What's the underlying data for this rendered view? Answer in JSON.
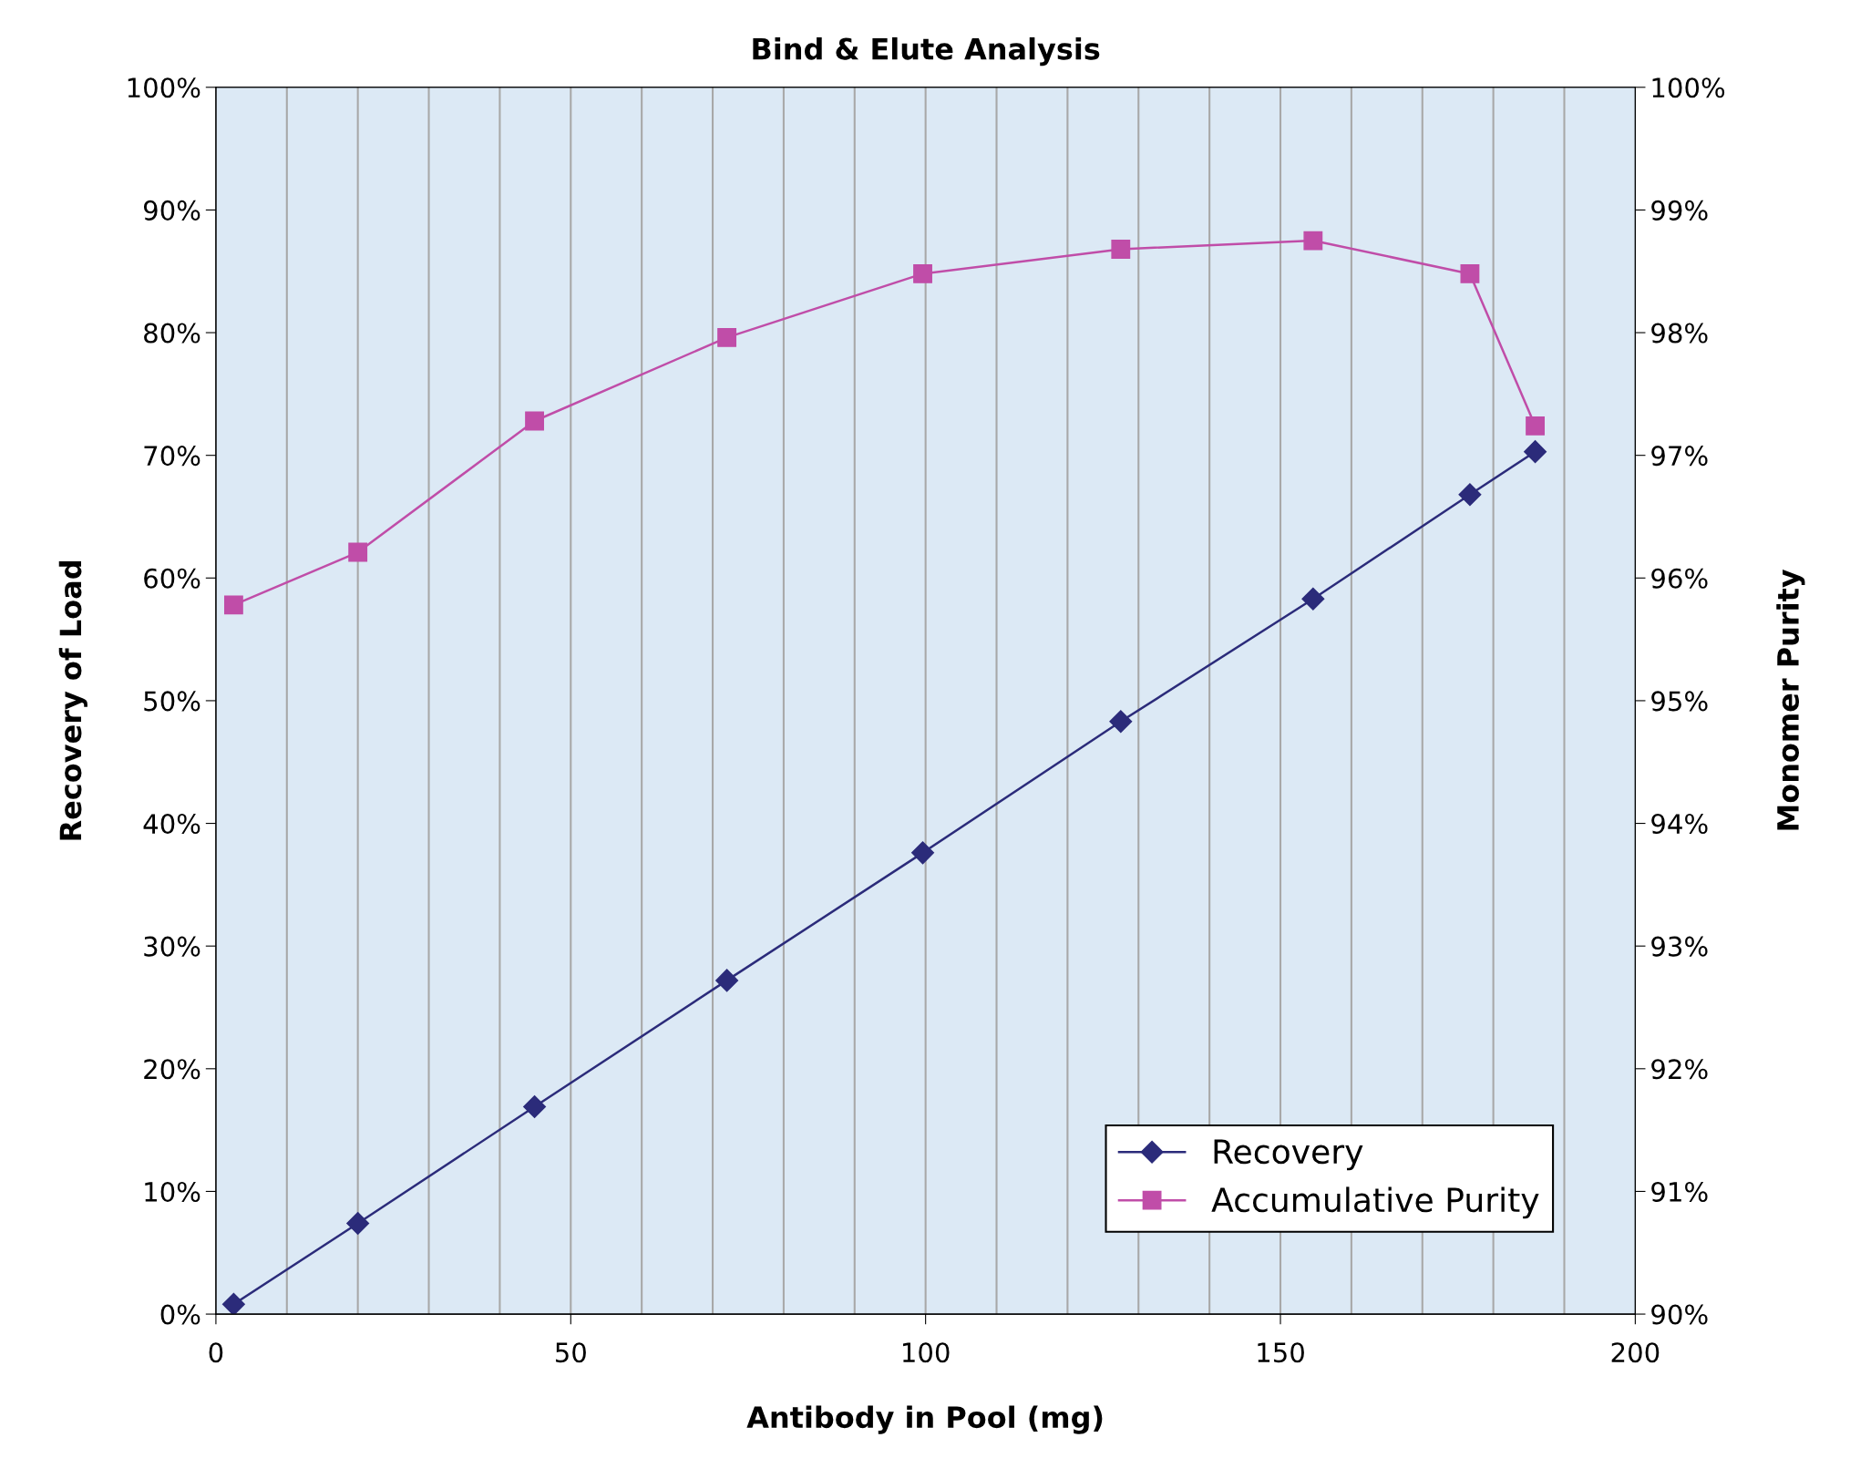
{
  "chart_data": {
    "type": "line",
    "title": "Bind & Elute Analysis",
    "xlabel": "Antibody in Pool (mg)",
    "ylabel": "Recovery of Load",
    "y2label": "Monomer Purity",
    "xlim": [
      0,
      200
    ],
    "xticks": [
      0,
      50,
      100,
      150,
      200
    ],
    "ylim": [
      0,
      100
    ],
    "yticks": [
      {
        "value": 0,
        "label": "0%"
      },
      {
        "value": 10,
        "label": "10%"
      },
      {
        "value": 20,
        "label": "20%"
      },
      {
        "value": 30,
        "label": "30%"
      },
      {
        "value": 40,
        "label": "40%"
      },
      {
        "value": 50,
        "label": "50%"
      },
      {
        "value": 60,
        "label": "60%"
      },
      {
        "value": 70,
        "label": "70%"
      },
      {
        "value": 80,
        "label": "80%"
      },
      {
        "value": 90,
        "label": "90%"
      },
      {
        "value": 100,
        "label": "100%"
      }
    ],
    "y2lim": [
      90,
      100
    ],
    "y2ticks": [
      {
        "value": 90,
        "label": "90%"
      },
      {
        "value": 91,
        "label": "91%"
      },
      {
        "value": 92,
        "label": "92%"
      },
      {
        "value": 93,
        "label": "93%"
      },
      {
        "value": 94,
        "label": "94%"
      },
      {
        "value": 95,
        "label": "95%"
      },
      {
        "value": 96,
        "label": "96%"
      },
      {
        "value": 97,
        "label": "97%"
      },
      {
        "value": 98,
        "label": "98%"
      },
      {
        "value": 99,
        "label": "99%"
      },
      {
        "value": 100,
        "label": "100%"
      }
    ],
    "x": [
      2.5,
      20,
      44.9,
      72,
      99.6,
      127.5,
      154.6,
      176.7,
      185.9
    ],
    "series": [
      {
        "name": "Recovery",
        "color": "#2b2b7a",
        "marker": "diamond",
        "values": [
          0.8,
          7.4,
          16.9,
          27.2,
          37.6,
          48.3,
          58.3,
          66.8,
          70.3
        ]
      },
      {
        "name": "Accumulative Purity",
        "color": "#c04da8",
        "marker": "square",
        "axis": "y2",
        "values": [
          95.78,
          96.21,
          97.28,
          97.96,
          98.48,
          98.68,
          98.75,
          98.48,
          97.24
        ]
      }
    ],
    "grid": "x",
    "legend": "bottom right",
    "line_style": "solid"
  }
}
